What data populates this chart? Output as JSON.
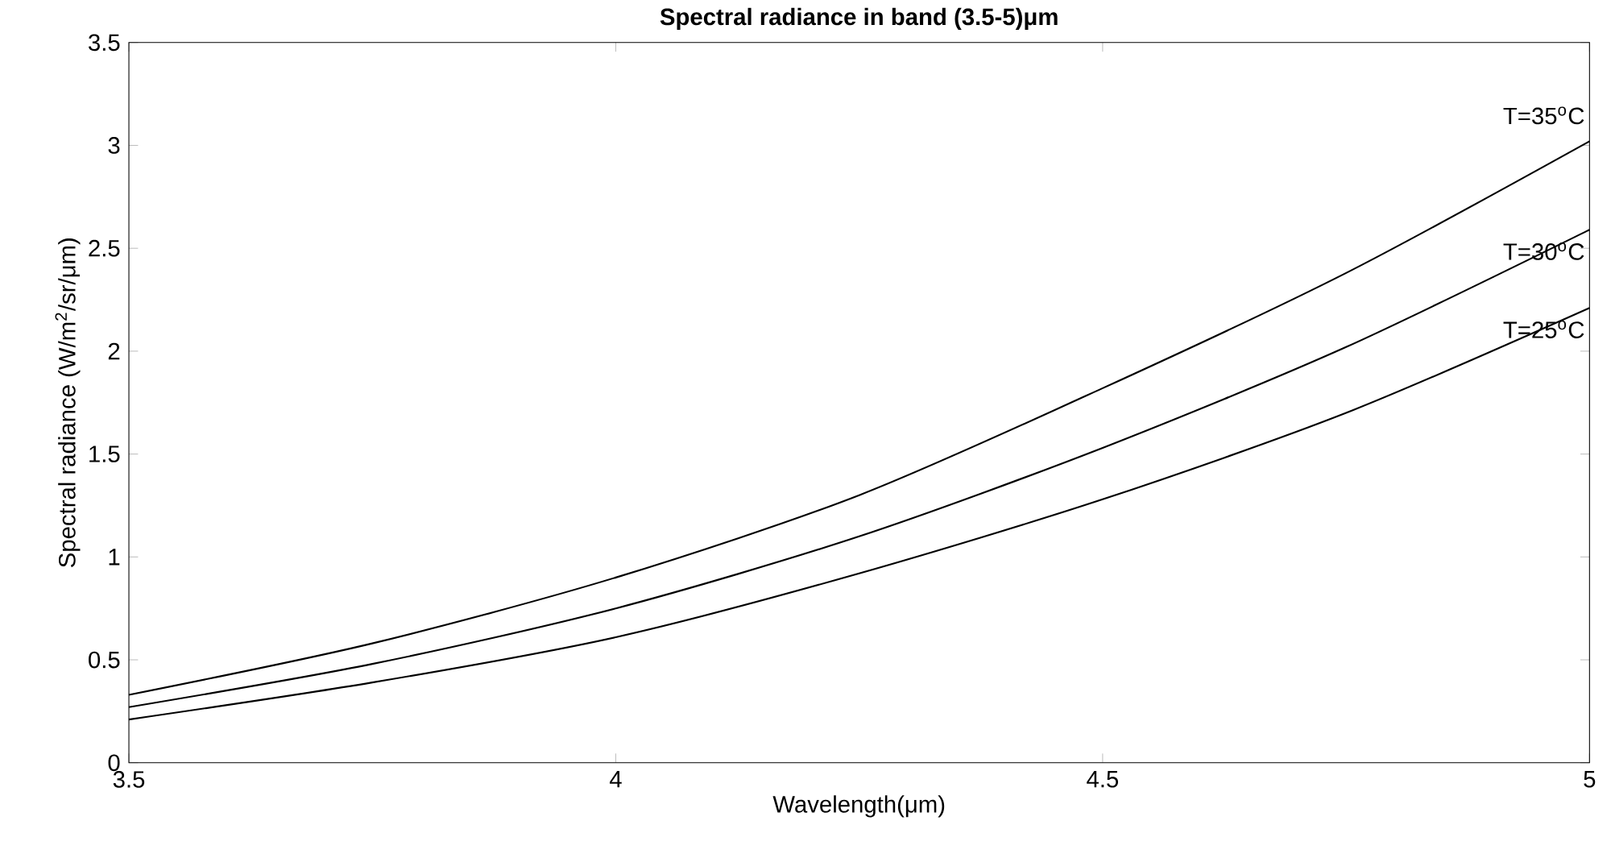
{
  "chart_data": {
    "type": "line",
    "title": "Spectral radiance in band (3.5-5)μm",
    "xlabel": "Wavelength(μm)",
    "ylabel": "Spectral radiance (W/m$^{2}$/sr/μm)",
    "x": [
      3.5,
      3.75,
      4,
      4.25,
      4.5,
      4.75,
      5
    ],
    "series": [
      {
        "color": "#000000",
        "values": [
          0.33,
          0.58,
          0.9,
          1.3,
          1.82,
          2.38,
          3.02
        ]
      },
      {
        "color": "#000000",
        "values": [
          0.27,
          0.48,
          0.75,
          1.1,
          1.53,
          2.02,
          2.59
        ]
      },
      {
        "color": "#000000",
        "values": [
          0.21,
          0.39,
          0.61,
          0.92,
          1.28,
          1.7,
          2.21
        ]
      }
    ],
    "annotations": [
      "T=35$^{o}$C",
      "T=30$^{o}$C",
      "T=25$^{o}$C"
    ],
    "xlim": [
      3.5,
      5
    ],
    "ylim": [
      0,
      3.5
    ],
    "xticks": [
      3.5,
      4,
      4.5,
      5
    ],
    "yticks": [
      0,
      0.5,
      1,
      1.5,
      2,
      2.5,
      3,
      3.5
    ],
    "grid": false,
    "marker": "none",
    "line_style": "solid"
  }
}
